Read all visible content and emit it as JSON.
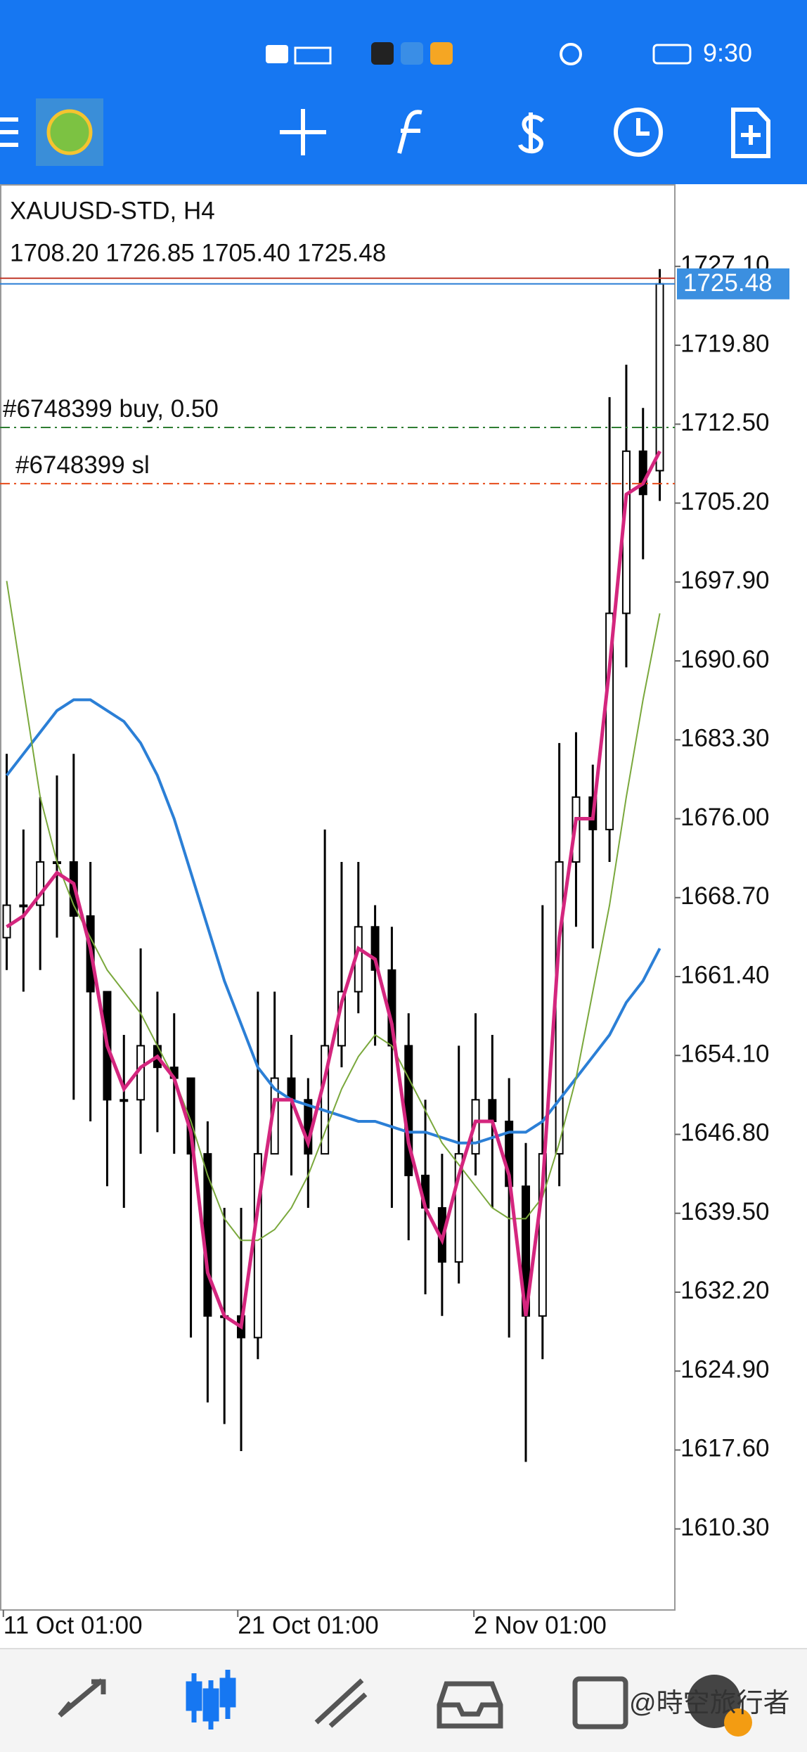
{
  "status_bar": {
    "time": "9:30"
  },
  "chart_data": {
    "type": "candlestick",
    "title": "XAUUSD-STD, H4",
    "ohlc_text": "1708.20 1726.85 1705.40 1725.48",
    "open": [
      1665,
      1668,
      1668,
      1672,
      1672,
      1667,
      1660,
      1650,
      1650,
      1655,
      1653,
      1652,
      1645,
      1630,
      1630,
      1628,
      1645,
      1652,
      1650,
      1645,
      1655,
      1660,
      1666,
      1662,
      1655,
      1643,
      1640,
      1635,
      1645,
      1650,
      1648,
      1642,
      1630,
      1645,
      1672,
      1678,
      1675,
      1695,
      1710,
      1708.2
    ],
    "high": [
      1682,
      1675,
      1678,
      1680,
      1682,
      1672,
      1660,
      1656,
      1664,
      1660,
      1658,
      1652,
      1648,
      1640,
      1640,
      1660,
      1660,
      1656,
      1652,
      1675,
      1672,
      1672,
      1668,
      1666,
      1658,
      1650,
      1645,
      1655,
      1658,
      1656,
      1652,
      1646,
      1668,
      1683,
      1684,
      1681,
      1715,
      1718,
      1714,
      1726.85
    ],
    "low": [
      1662,
      1660,
      1662,
      1665,
      1650,
      1648,
      1642,
      1640,
      1645,
      1647,
      1645,
      1628,
      1622,
      1620,
      1617.5,
      1626,
      1645,
      1643,
      1640,
      1645,
      1653,
      1658,
      1655,
      1640,
      1637,
      1632,
      1630,
      1633,
      1643,
      1640,
      1628,
      1616.5,
      1626,
      1642,
      1666,
      1664,
      1672,
      1690,
      1700,
      1705.4
    ],
    "close": [
      1668,
      1668,
      1672,
      1672,
      1667,
      1660,
      1650,
      1650,
      1655,
      1653,
      1652,
      1645,
      1630,
      1630,
      1628,
      1645,
      1652,
      1650,
      1645,
      1655,
      1660,
      1666,
      1662,
      1655,
      1643,
      1640,
      1635,
      1645,
      1650,
      1648,
      1642,
      1630,
      1645,
      1672,
      1678,
      1675,
      1695,
      1710,
      1706,
      1725.48
    ],
    "series": [
      {
        "color": "#2b7fd6",
        "values": [
          1680,
          1682,
          1684,
          1686,
          1687,
          1687,
          1686,
          1685,
          1683,
          1680,
          1676,
          1671,
          1666,
          1661,
          1657,
          1653,
          1651,
          1650,
          1649.5,
          1649,
          1648.5,
          1648,
          1648,
          1647.5,
          1647,
          1647,
          1646.5,
          1646,
          1646,
          1646.5,
          1647,
          1647,
          1648,
          1650,
          1652,
          1654,
          1656,
          1659,
          1661,
          1664
        ]
      },
      {
        "color": "#7aa83c",
        "values": [
          1698,
          1688,
          1678,
          1672,
          1668,
          1665,
          1662,
          1660,
          1658,
          1655,
          1652,
          1648,
          1643,
          1639,
          1637,
          1637,
          1638,
          1640,
          1643,
          1647,
          1651,
          1654,
          1656,
          1655,
          1652,
          1649,
          1646,
          1644,
          1642,
          1640,
          1639,
          1639,
          1641,
          1646,
          1652,
          1660,
          1668,
          1678,
          1687,
          1695
        ]
      },
      {
        "color": "#d4267e",
        "values": [
          1666,
          1667,
          1669,
          1671,
          1670,
          1664,
          1655,
          1651,
          1653,
          1654,
          1652,
          1647,
          1634,
          1630,
          1629,
          1640,
          1650,
          1650,
          1646,
          1652,
          1659,
          1664,
          1663,
          1657,
          1646,
          1640,
          1637,
          1643,
          1648,
          1648,
          1643,
          1630,
          1642,
          1665,
          1676,
          1676,
          1690,
          1706,
          1707,
          1710
        ]
      }
    ],
    "ylim": [
      1602.8,
      1734.7
    ],
    "yticks": [
      {
        "value": 1610.3,
        "label": "1610.30"
      },
      {
        "value": 1617.6,
        "label": "1617.60"
      },
      {
        "value": 1624.9,
        "label": "1624.90"
      },
      {
        "value": 1632.2,
        "label": "1632.20"
      },
      {
        "value": 1639.5,
        "label": "1639.50"
      },
      {
        "value": 1646.8,
        "label": "1646.80"
      },
      {
        "value": 1654.1,
        "label": "1654.10"
      },
      {
        "value": 1661.4,
        "label": "1661.40"
      },
      {
        "value": 1668.7,
        "label": "1668.70"
      },
      {
        "value": 1676,
        "label": "1676.00"
      },
      {
        "value": 1683.3,
        "label": "1683.30"
      },
      {
        "value": 1690.6,
        "label": "1690.60"
      },
      {
        "value": 1697.9,
        "label": "1697.90"
      },
      {
        "value": 1705.2,
        "label": "1705.20"
      },
      {
        "value": 1712.5,
        "label": "1712.50"
      },
      {
        "value": 1719.8,
        "label": "1719.80"
      },
      {
        "value": 1727.1,
        "label": "1727.10"
      }
    ],
    "xlim": [
      -0.4,
      39.9
    ],
    "xticks": [
      {
        "value": -0.2,
        "label": "11 Oct 01:00"
      },
      {
        "value": 13.8,
        "label": "21 Oct 01:00"
      },
      {
        "value": 27.9,
        "label": "2 Nov 01:00"
      }
    ],
    "bid": {
      "value": 1725.48,
      "label": "1725.48",
      "color": "#2b7fd6"
    },
    "ask": {
      "value": 1726.0,
      "color": "#c0392b"
    },
    "orders": [
      {
        "label": "#6748399 buy, 0.50",
        "value": 1712.2,
        "color": "#2e7d32"
      },
      {
        "label": "#6748399 sl",
        "value": 1707.0,
        "color": "#e64a19"
      }
    ]
  },
  "watermark": "@時空旅行者"
}
